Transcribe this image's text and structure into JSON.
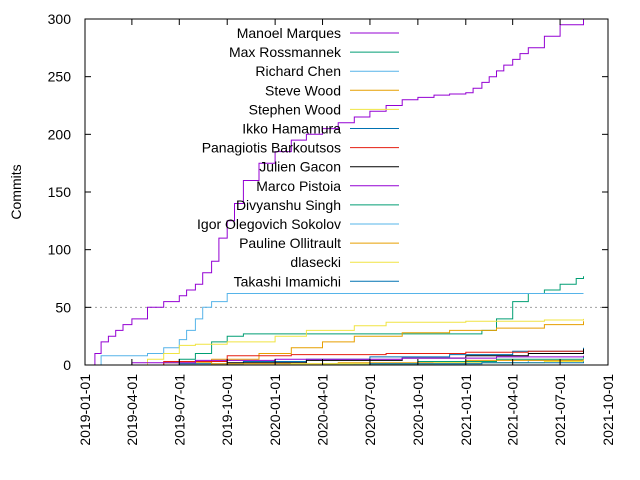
{
  "chart_data": {
    "type": "line",
    "title": "",
    "xlabel": "",
    "ylabel": "Commits",
    "ylim": [
      0,
      300
    ],
    "xlim": [
      "2019-01-01",
      "2021-10-01"
    ],
    "y_ticks": [
      0,
      50,
      100,
      150,
      200,
      250,
      300
    ],
    "x_ticks": [
      "2019-01-01",
      "2019-04-01",
      "2019-07-01",
      "2019-10-01",
      "2020-01-01",
      "2020-04-01",
      "2020-07-01",
      "2020-10-01",
      "2021-01-01",
      "2021-04-01",
      "2021-07-01",
      "2021-10-01"
    ],
    "reference_line": {
      "y": 50,
      "style": "dotted"
    },
    "legend_placement": "top-center",
    "series": [
      {
        "name": "Manoel Marques",
        "color": "#9400d3",
        "x": [
          "2019-01-10",
          "2019-01-20",
          "2019-02-01",
          "2019-02-15",
          "2019-03-01",
          "2019-03-15",
          "2019-04-01",
          "2019-05-01",
          "2019-06-01",
          "2019-07-01",
          "2019-07-15",
          "2019-08-01",
          "2019-08-15",
          "2019-09-01",
          "2019-09-15",
          "2019-10-01",
          "2019-10-15",
          "2019-11-01",
          "2019-12-01",
          "2020-01-01",
          "2020-02-01",
          "2020-03-01",
          "2020-04-01",
          "2020-05-01",
          "2020-06-01",
          "2020-07-01",
          "2020-08-01",
          "2020-09-01",
          "2020-10-01",
          "2020-11-01",
          "2020-12-01",
          "2021-01-01",
          "2021-01-15",
          "2021-02-01",
          "2021-02-15",
          "2021-03-01",
          "2021-03-15",
          "2021-04-01",
          "2021-04-15",
          "2021-05-01",
          "2021-06-01",
          "2021-07-01",
          "2021-08-15"
        ],
        "values": [
          0,
          10,
          20,
          25,
          30,
          35,
          40,
          50,
          55,
          60,
          65,
          70,
          80,
          90,
          110,
          125,
          140,
          160,
          175,
          185,
          195,
          200,
          205,
          210,
          215,
          220,
          225,
          230,
          232,
          234,
          235,
          236,
          240,
          245,
          250,
          255,
          260,
          265,
          270,
          275,
          285,
          295,
          300
        ]
      },
      {
        "name": "Max Rossmannek",
        "color": "#009e73",
        "x": [
          "2019-01-01",
          "2019-06-01",
          "2019-07-01",
          "2019-08-01",
          "2019-09-01",
          "2019-10-01",
          "2019-11-01",
          "2020-06-01",
          "2021-01-01",
          "2021-02-01",
          "2021-03-01",
          "2021-04-01",
          "2021-05-01",
          "2021-06-01",
          "2021-07-01",
          "2021-08-01",
          "2021-08-15"
        ],
        "values": [
          0,
          2,
          5,
          10,
          20,
          25,
          27,
          27,
          27,
          30,
          40,
          55,
          62,
          65,
          70,
          75,
          77
        ]
      },
      {
        "name": "Richard Chen",
        "color": "#56b4e9",
        "x": [
          "2019-01-01",
          "2019-02-01",
          "2019-03-15",
          "2019-05-01",
          "2019-06-01",
          "2019-07-01",
          "2019-07-15",
          "2019-08-01",
          "2019-08-15",
          "2019-09-01",
          "2019-10-01",
          "2020-01-01",
          "2020-06-01",
          "2021-01-01",
          "2021-08-15"
        ],
        "values": [
          0,
          8,
          8,
          10,
          15,
          22,
          30,
          40,
          50,
          55,
          62,
          62,
          62,
          62,
          62
        ]
      },
      {
        "name": "Steve Wood",
        "color": "#e69f00",
        "x": [
          "2019-01-01",
          "2019-06-01",
          "2019-09-01",
          "2019-12-01",
          "2020-02-01",
          "2020-04-01",
          "2020-06-01",
          "2020-09-01",
          "2020-12-01",
          "2021-03-01",
          "2021-06-01",
          "2021-08-15"
        ],
        "values": [
          0,
          2,
          5,
          10,
          15,
          20,
          25,
          28,
          30,
          32,
          35,
          38
        ]
      },
      {
        "name": "Stephen Wood",
        "color": "#f0e442",
        "x": [
          "2019-01-01",
          "2019-05-01",
          "2019-06-01",
          "2019-07-01",
          "2019-08-01",
          "2019-10-01",
          "2020-01-01",
          "2020-03-01",
          "2020-06-01",
          "2020-08-01",
          "2021-01-01",
          "2021-06-01",
          "2021-08-15"
        ],
        "values": [
          0,
          5,
          10,
          17,
          18,
          20,
          25,
          30,
          34,
          37,
          38,
          39,
          40
        ]
      },
      {
        "name": "Ikko Hamamura",
        "color": "#0072b2",
        "x": [
          "2019-01-01",
          "2019-07-01",
          "2019-11-01",
          "2020-03-01",
          "2020-07-01",
          "2020-12-01",
          "2021-04-01",
          "2021-08-15"
        ],
        "values": [
          0,
          1,
          3,
          5,
          7,
          9,
          12,
          15
        ]
      },
      {
        "name": "Panagiotis Barkoutsos",
        "color": "#e51e10",
        "x": [
          "2019-01-01",
          "2019-06-01",
          "2019-10-01",
          "2020-02-01",
          "2020-08-01",
          "2021-01-01",
          "2021-05-01",
          "2021-08-15"
        ],
        "values": [
          0,
          3,
          8,
          9,
          10,
          11,
          12,
          13
        ]
      },
      {
        "name": "Julien Gacon",
        "color": "#000000",
        "x": [
          "2019-01-01",
          "2019-10-01",
          "2020-03-01",
          "2020-09-01",
          "2021-01-01",
          "2021-05-01",
          "2021-08-15"
        ],
        "values": [
          0,
          2,
          4,
          6,
          8,
          10,
          14
        ]
      },
      {
        "name": "Marco Pistoia",
        "color": "#9400d3",
        "x": [
          "2019-01-01",
          "2019-04-01",
          "2019-08-01",
          "2020-01-01",
          "2020-09-01",
          "2021-03-01",
          "2021-08-15"
        ],
        "values": [
          0,
          2,
          4,
          5,
          6,
          7,
          8
        ]
      },
      {
        "name": "Divyanshu Singh",
        "color": "#009e73",
        "x": [
          "2019-01-01",
          "2020-04-01",
          "2020-10-01",
          "2021-03-01",
          "2021-08-15"
        ],
        "values": [
          0,
          1,
          3,
          5,
          7
        ]
      },
      {
        "name": "Igor Olegovich Sokolov",
        "color": "#56b4e9",
        "x": [
          "2019-01-01",
          "2020-06-01",
          "2021-01-01",
          "2021-05-01",
          "2021-08-15"
        ],
        "values": [
          0,
          1,
          2,
          4,
          6
        ]
      },
      {
        "name": "Pauline Ollitrault",
        "color": "#e69f00",
        "x": [
          "2019-01-01",
          "2019-09-01",
          "2020-05-01",
          "2021-01-01",
          "2021-08-15"
        ],
        "values": [
          0,
          1,
          2,
          4,
          5
        ]
      },
      {
        "name": "dlasecki",
        "color": "#f0e442",
        "x": [
          "2019-01-01",
          "2020-02-01",
          "2020-11-01",
          "2021-06-01",
          "2021-08-15"
        ],
        "values": [
          0,
          1,
          2,
          3,
          4
        ]
      },
      {
        "name": "Takashi Imamichi",
        "color": "#0072b2",
        "x": [
          "2019-01-01",
          "2020-07-01",
          "2021-02-01",
          "2021-08-15"
        ],
        "values": [
          0,
          1,
          2,
          3
        ]
      }
    ]
  }
}
